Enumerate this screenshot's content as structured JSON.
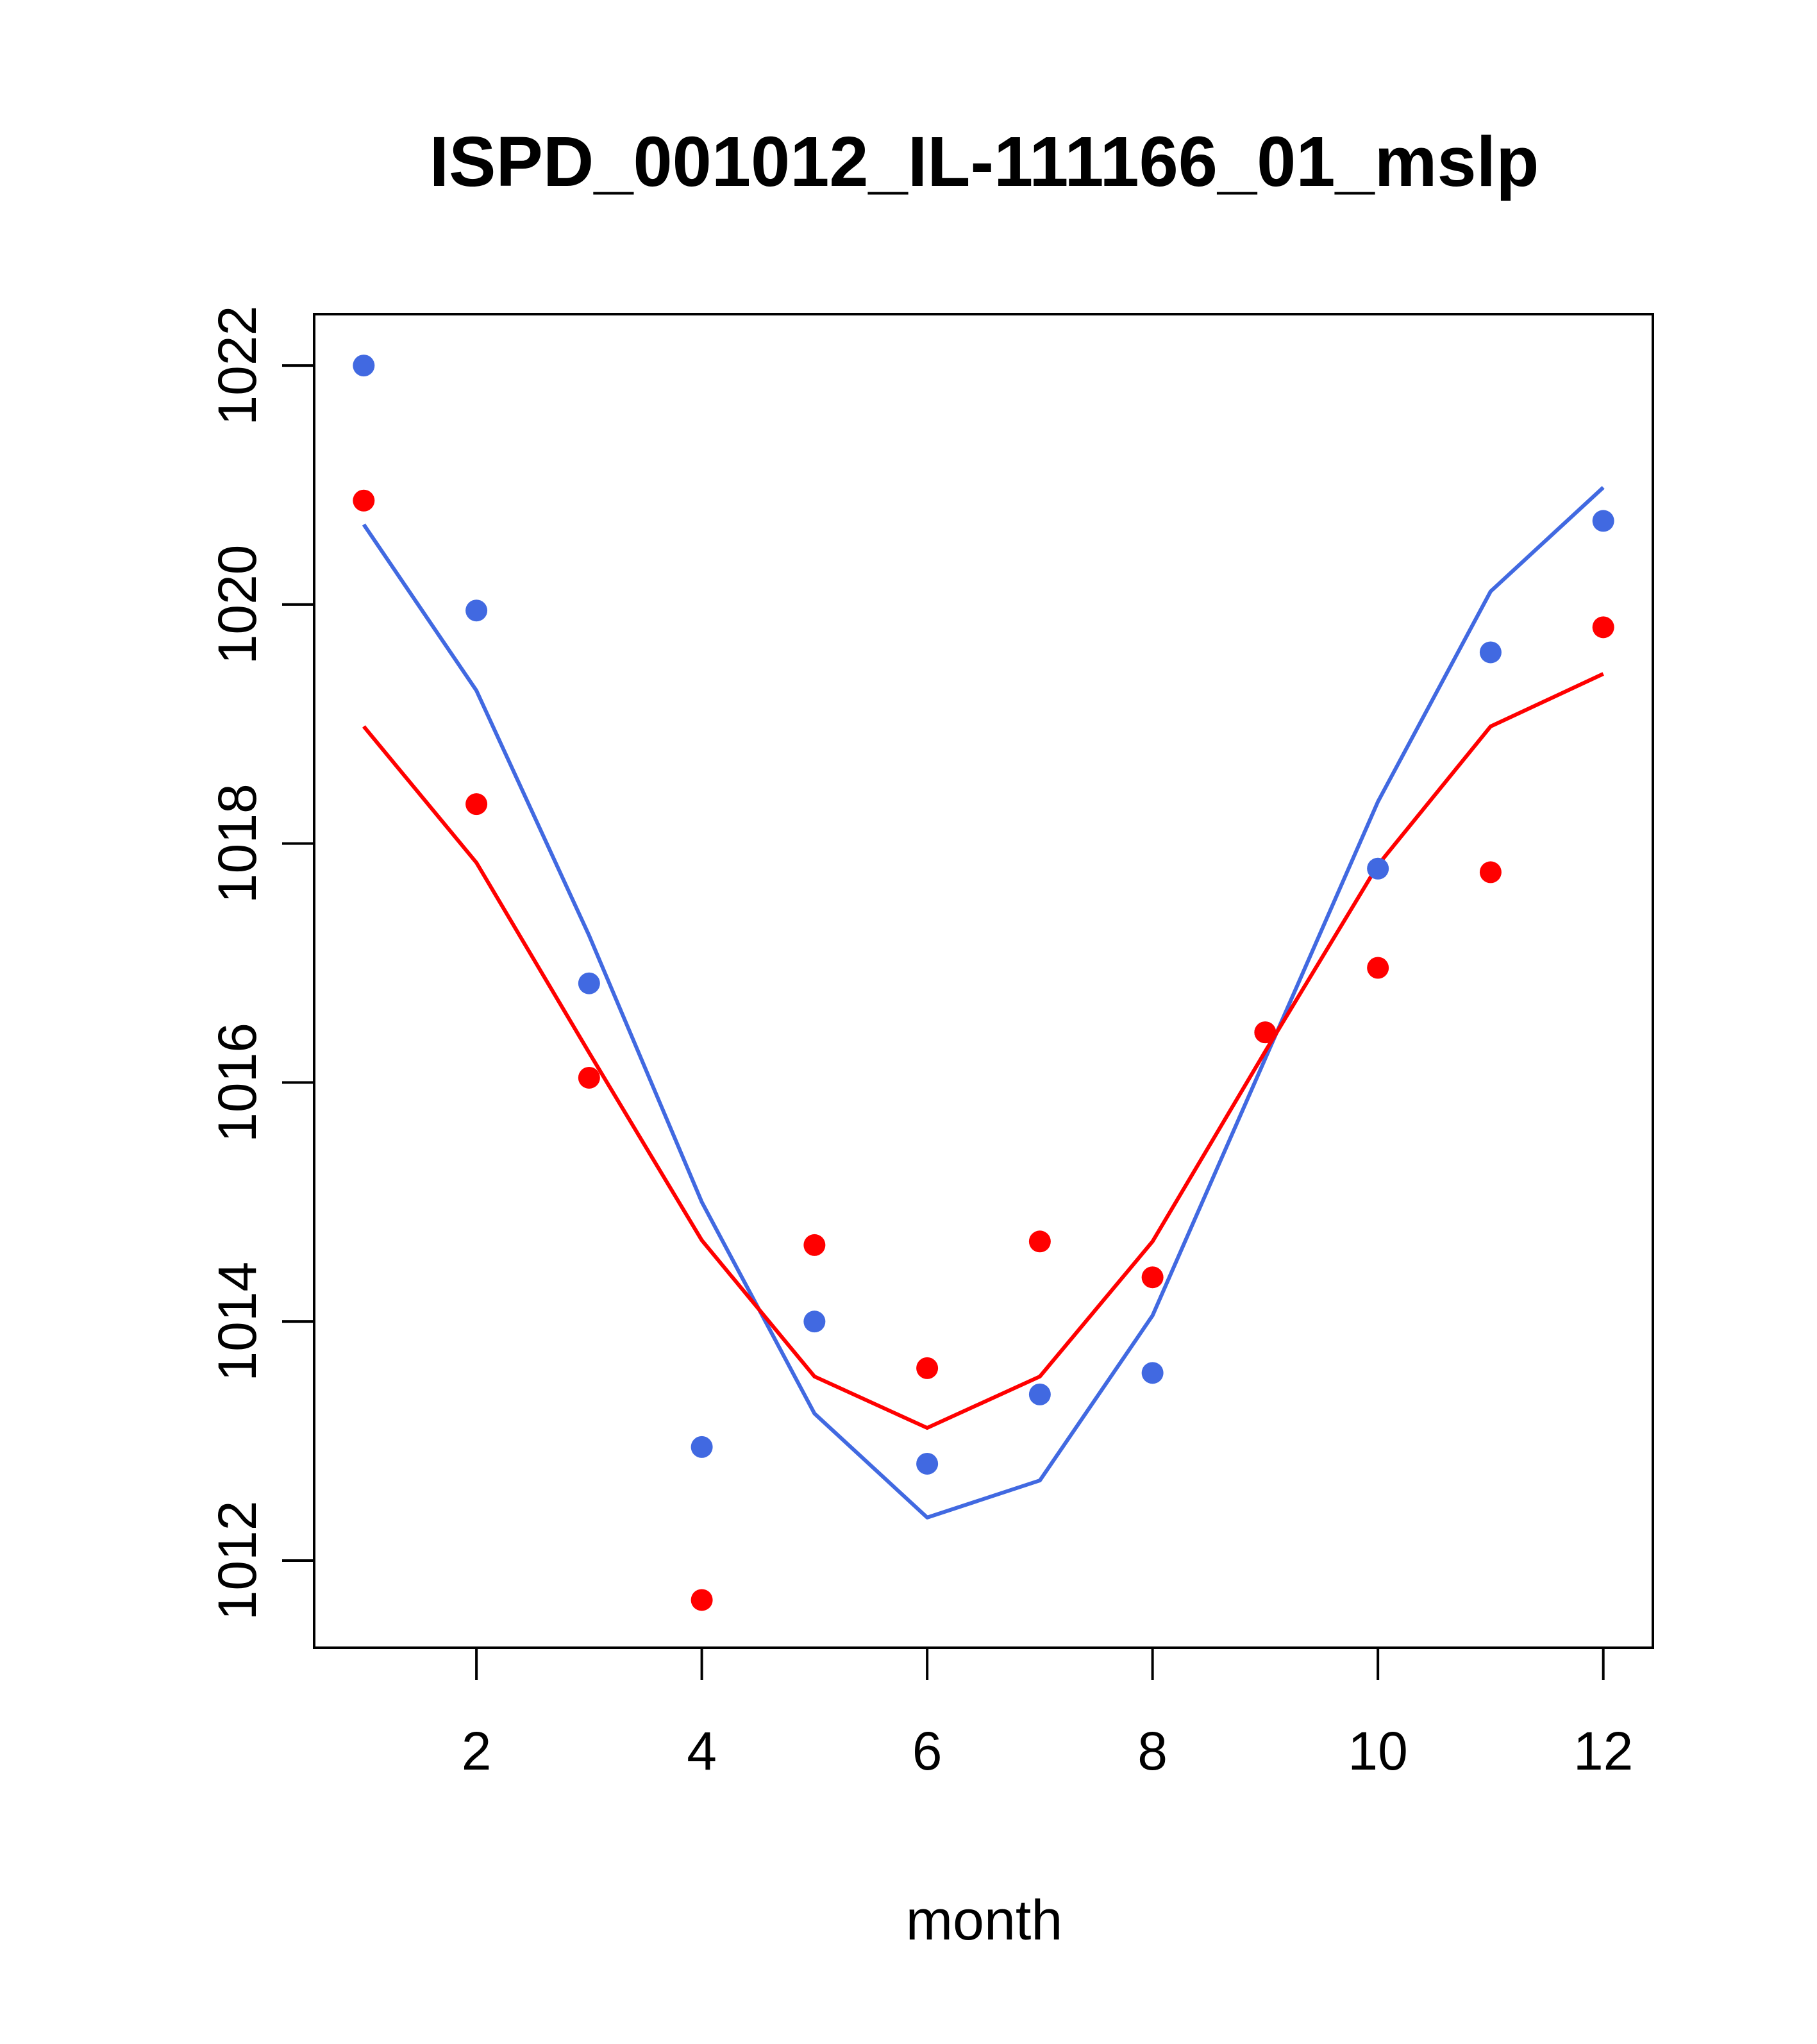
{
  "chart_data": {
    "type": "scatter",
    "title": "ISPD_001012_IL-111166_01_mslp",
    "xlabel": "month",
    "ylabel": "",
    "xlim": [
      0.56,
      12.44
    ],
    "ylim": [
      1011.27,
      1022.43
    ],
    "x_ticks": [
      2,
      4,
      6,
      8,
      10,
      12
    ],
    "x_tick_labels": [
      "2",
      "4",
      "6",
      "8",
      "10",
      "12"
    ],
    "y_ticks": [
      1012,
      1014,
      1016,
      1018,
      1020,
      1022
    ],
    "y_tick_labels": [
      "1012",
      "1014",
      "1016",
      "1018",
      "1020",
      "1022"
    ],
    "x": [
      1,
      2,
      3,
      4,
      5,
      6,
      7,
      8,
      9,
      10,
      11,
      12
    ],
    "series": [
      {
        "name": "blue points",
        "kind": "points",
        "color": "#4169e1",
        "values": [
          1022.0,
          1019.95,
          1016.83,
          1012.95,
          1014.0,
          1012.81,
          1013.39,
          1013.57,
          1016.42,
          1017.79,
          1019.6,
          1020.7
        ]
      },
      {
        "name": "red points",
        "kind": "points",
        "color": "#ff0000",
        "values": [
          1020.87,
          1018.33,
          1016.04,
          1011.67,
          1014.64,
          1013.61,
          1014.67,
          1014.37,
          1016.42,
          1016.96,
          1017.76,
          1019.81
        ]
      },
      {
        "name": "blue line",
        "kind": "line",
        "color": "#4169e1",
        "values": [
          1020.67,
          1019.28,
          1017.23,
          1015.0,
          1013.23,
          1012.36,
          1012.67,
          1014.05,
          1016.2,
          1018.35,
          1020.11,
          1020.98
        ]
      },
      {
        "name": "red line",
        "kind": "line",
        "color": "#ff0000",
        "values": [
          1018.98,
          1017.84,
          1016.25,
          1014.68,
          1013.54,
          1013.11,
          1013.54,
          1014.67,
          1016.26,
          1017.82,
          1018.98,
          1019.42
        ]
      }
    ]
  }
}
